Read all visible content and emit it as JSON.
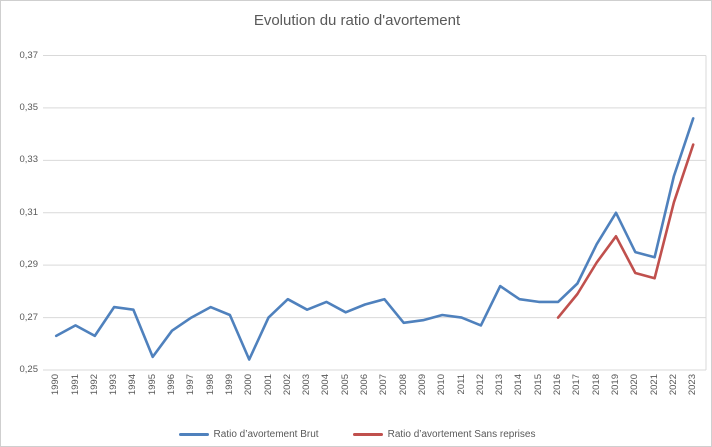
{
  "chart": {
    "title": "Evolution du ratio d'avortement"
  },
  "chart_data": {
    "type": "line",
    "title": "Evolution du ratio d'avortement",
    "categories": [
      "1990",
      "1991",
      "1992",
      "1993",
      "1994",
      "1995",
      "1996",
      "1997",
      "1998",
      "1999",
      "2000",
      "2001",
      "2002",
      "2003",
      "2004",
      "2005",
      "2006",
      "2007",
      "2008",
      "2009",
      "2010",
      "2011",
      "2012",
      "2013",
      "2014",
      "2015",
      "2016",
      "2017",
      "2018",
      "2019",
      "2020",
      "2021",
      "2022",
      "2023"
    ],
    "series": [
      {
        "name": "Ratio d’avortement Brut",
        "color": "#4F81BD",
        "values": [
          0.263,
          0.267,
          0.263,
          0.274,
          0.273,
          0.255,
          0.265,
          0.27,
          0.274,
          0.271,
          0.254,
          0.27,
          0.277,
          0.273,
          0.276,
          0.272,
          0.275,
          0.277,
          0.268,
          0.269,
          0.271,
          0.27,
          0.267,
          0.282,
          0.277,
          0.276,
          0.276,
          0.283,
          0.298,
          0.31,
          0.295,
          0.293,
          0.324,
          0.346
        ]
      },
      {
        "name": "Ratio d’avortement Sans reprises",
        "color": "#C0504D",
        "values": [
          null,
          null,
          null,
          null,
          null,
          null,
          null,
          null,
          null,
          null,
          null,
          null,
          null,
          null,
          null,
          null,
          null,
          null,
          null,
          null,
          null,
          null,
          null,
          null,
          null,
          null,
          0.27,
          0.279,
          0.291,
          0.301,
          0.287,
          0.285,
          0.314,
          0.336
        ]
      }
    ],
    "ylim": [
      0.25,
      0.37
    ],
    "y_tick_step": 0.02,
    "y_tick_labels": [
      "0,25",
      "0,27",
      "0,29",
      "0,31",
      "0,33",
      "0,35",
      "0,37"
    ],
    "xlabel": "",
    "ylabel": "",
    "grid": true,
    "legend_position": "bottom"
  },
  "colors": {
    "grid": "#D9D9D9",
    "axis_text": "#595959",
    "title_text": "#595959",
    "background": "#FFFFFF",
    "frame_border": "#CFCFCF"
  }
}
